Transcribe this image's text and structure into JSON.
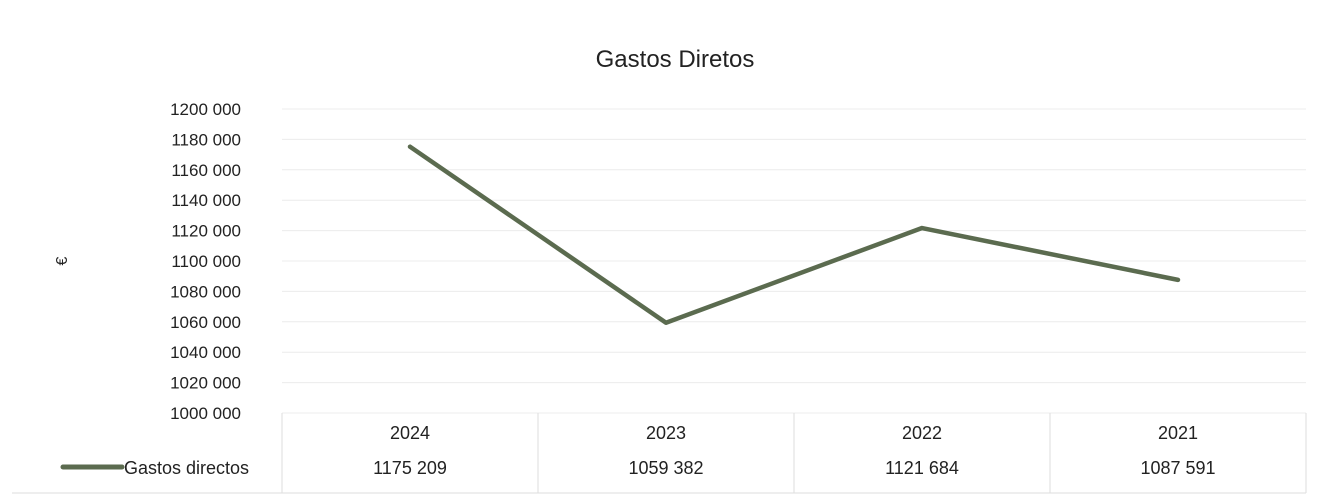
{
  "chart_data": {
    "type": "line",
    "title": "Gastos Diretos",
    "ylabel": "€",
    "xlabel": "",
    "ylim": [
      1000000,
      1200000
    ],
    "y_ticks": [
      1000000,
      1020000,
      1040000,
      1060000,
      1080000,
      1100000,
      1120000,
      1140000,
      1160000,
      1180000,
      1200000
    ],
    "y_tick_labels": [
      "1000 000",
      "1020 000",
      "1040 000",
      "1060 000",
      "1080 000",
      "1100 000",
      "1120 000",
      "1140 000",
      "1160 000",
      "1180 000",
      "1200 000"
    ],
    "categories": [
      "2024",
      "2023",
      "2022",
      "2021"
    ],
    "series": [
      {
        "name": "Gastos directos",
        "values": [
          1175209,
          1059382,
          1121684,
          1087591
        ],
        "value_labels": [
          "1175 209",
          "1059 382",
          "1121 684",
          "1087 591"
        ],
        "color": "#5b6b4f"
      }
    ],
    "grid": true,
    "legend": "data-table"
  }
}
